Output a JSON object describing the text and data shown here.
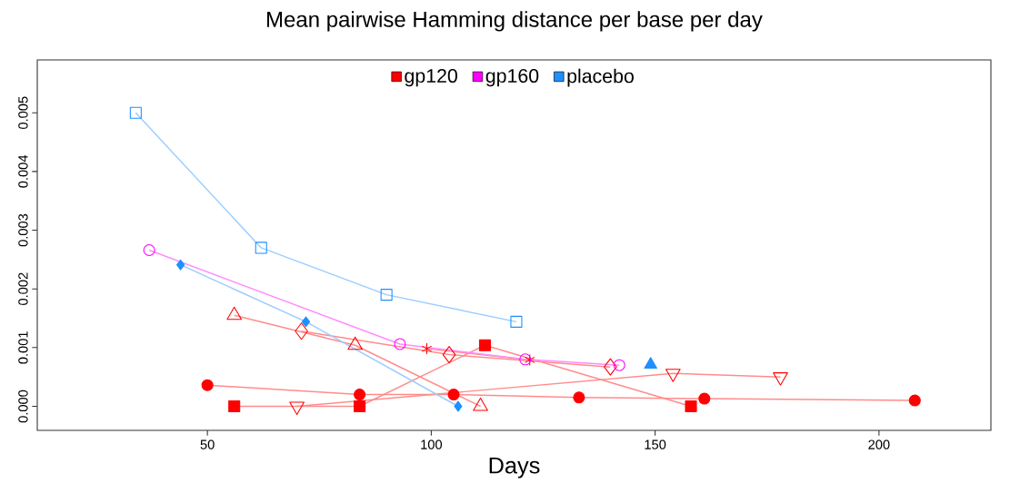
{
  "chart_data": {
    "type": "line",
    "title": "Mean pairwise Hamming distance per base per day",
    "xlabel": "Days",
    "xlim": [
      12,
      225
    ],
    "ylim": [
      -0.00041,
      0.0059
    ],
    "xticks": [
      50,
      100,
      150,
      200
    ],
    "yticks": [
      {
        "value": 0,
        "label": "0.000"
      },
      {
        "value": 0.001,
        "label": "0.001"
      },
      {
        "value": 0.002,
        "label": "0.002"
      },
      {
        "value": 0.003,
        "label": "0.003"
      },
      {
        "value": 0.004,
        "label": "0.004"
      },
      {
        "value": 0.005,
        "label": "0.005"
      }
    ],
    "grid": false,
    "legend": "top",
    "series": [
      {
        "name": "gp120",
        "color": "#ff0000",
        "marker": "square filled",
        "x": [
          56,
          84,
          112,
          158
        ],
        "values": [
          0,
          0,
          0.00104,
          0
        ]
      },
      {
        "color": "#ff0000",
        "marker": "triangle",
        "x": [
          56,
          83,
          111
        ],
        "values": [
          0.00155,
          0.00104,
          0
        ]
      },
      {
        "color": "#ff0000",
        "marker": "diamond",
        "x": [
          71,
          104,
          140
        ],
        "values": [
          0.00128,
          0.00088,
          0.00067
        ]
      },
      {
        "color": "#ff0000",
        "marker": "cross",
        "x": [
          99,
          122
        ],
        "values": [
          0.00098,
          0.00079
        ]
      },
      {
        "color": "#ff0000",
        "marker": "circle filled",
        "x": [
          50,
          84,
          105,
          133,
          161,
          208
        ],
        "values": [
          0.00036,
          0.0002,
          0.0002,
          0.00015,
          0.00013,
          0.0001
        ]
      },
      {
        "color": "#ff0000",
        "marker": "triangle down",
        "x": [
          70,
          154,
          178
        ],
        "values": [
          0,
          0.00056,
          0.0005
        ]
      },
      {
        "name": "gp160",
        "color": "#ff00ff",
        "marker": "circle",
        "x": [
          37,
          93,
          121,
          142
        ],
        "values": [
          0.00266,
          0.00106,
          0.0008,
          0.0007
        ]
      },
      {
        "name": "placebo",
        "color": "#1e90ff",
        "marker": "square",
        "x": [
          34,
          62,
          90,
          119
        ],
        "values": [
          0.005,
          0.0027,
          0.0019,
          0.00144
        ]
      },
      {
        "color": "#1e90ff",
        "marker": "diamond filled",
        "x": [
          44,
          72,
          106
        ],
        "values": [
          0.00241,
          0.00144,
          0
        ]
      },
      {
        "color": "#1e90ff",
        "marker": "triangle filled",
        "x": [
          149
        ],
        "values": [
          0.00071
        ]
      }
    ]
  }
}
